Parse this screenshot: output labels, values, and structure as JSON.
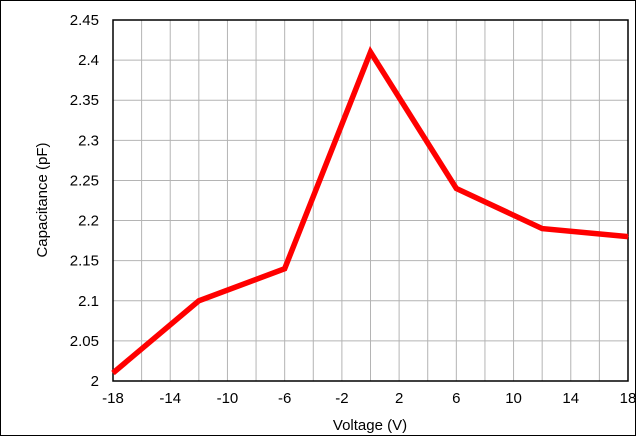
{
  "chart_data": {
    "type": "line",
    "title": "",
    "xlabel": "Voltage (V)",
    "ylabel": "Capacitance (pF)",
    "xlim": [
      -18,
      18
    ],
    "ylim": [
      2,
      2.45
    ],
    "x_ticks": [
      -18,
      -14,
      -10,
      -6,
      -2,
      2,
      6,
      10,
      14,
      18
    ],
    "x_tick_labels": [
      "-18",
      "-14",
      "-10",
      "-6",
      "-2",
      "2",
      "6",
      "10",
      "14",
      "18"
    ],
    "y_ticks": [
      2,
      2.05,
      2.1,
      2.15,
      2.2,
      2.25,
      2.3,
      2.35,
      2.4,
      2.45
    ],
    "y_tick_labels": [
      "2",
      "2.05",
      "2.1",
      "2.15",
      "2.2",
      "2.25",
      "2.3",
      "2.35",
      "2.4",
      "2.45"
    ],
    "x_minor_step": 2,
    "grid": true,
    "legend": "none",
    "series": [
      {
        "color": "#ff0000",
        "x": [
          -18,
          -12,
          -6,
          0,
          6,
          12,
          18
        ],
        "y": [
          2.01,
          2.1,
          2.14,
          2.41,
          2.24,
          2.19,
          2.18
        ]
      }
    ]
  }
}
